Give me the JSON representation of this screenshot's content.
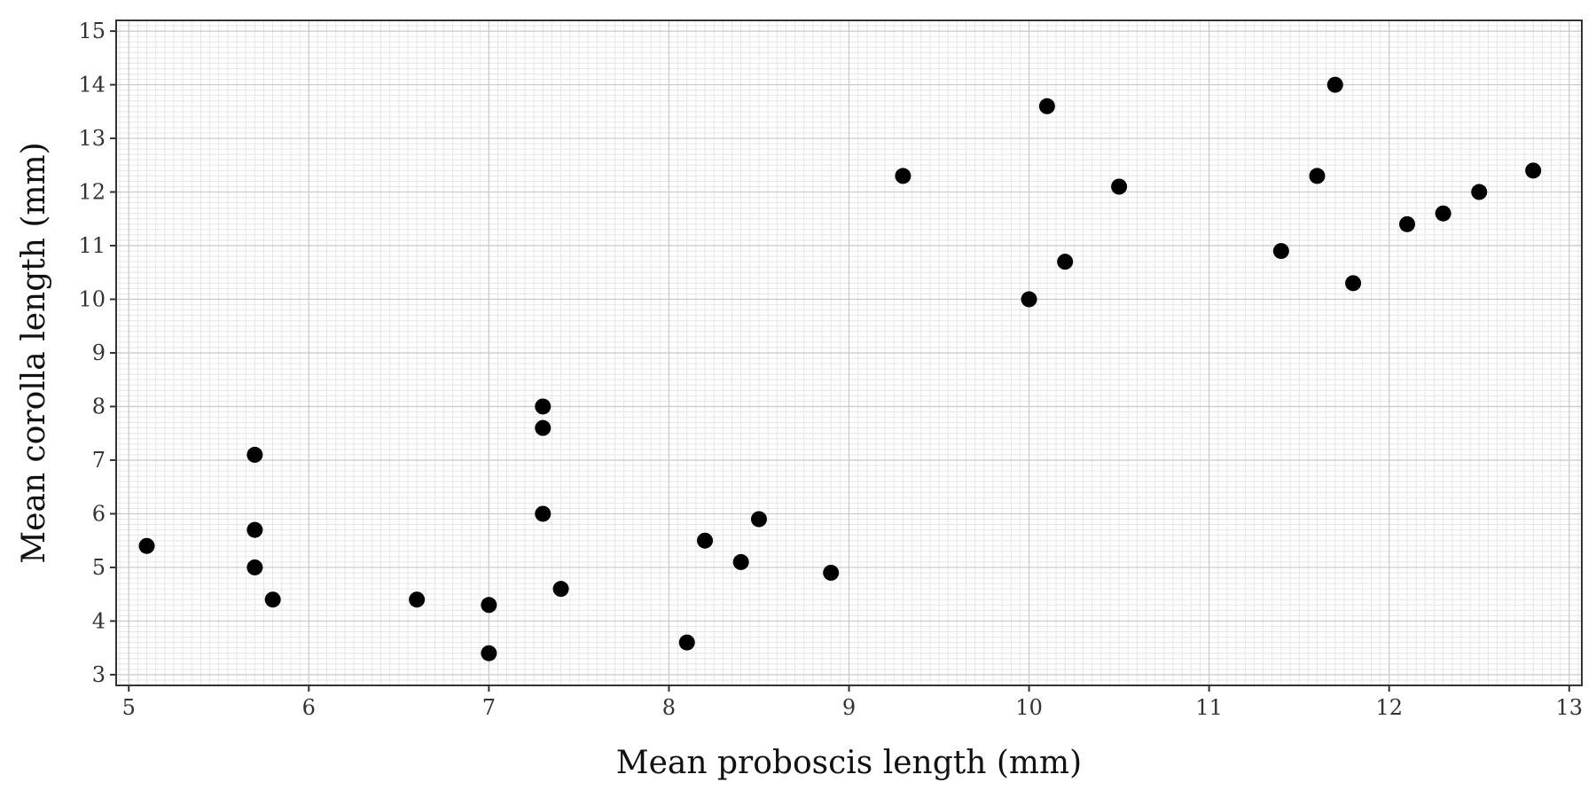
{
  "chart_data": {
    "type": "scatter",
    "title": "",
    "xlabel": "Mean proboscis length (mm)",
    "ylabel": "Mean corolla length (mm)",
    "xlim": [
      4.93,
      13.07
    ],
    "ylim": [
      2.8,
      15.2
    ],
    "xticks": [
      "5",
      "6",
      "7",
      "8",
      "9",
      "10",
      "11",
      "12",
      "13"
    ],
    "yticks": [
      "3",
      "4",
      "5",
      "6",
      "7",
      "8",
      "9",
      "10",
      "11",
      "12",
      "13",
      "14",
      "15"
    ],
    "grid": true,
    "legend": "none",
    "point_color": "#000000",
    "points": [
      {
        "x": 5.1,
        "y": 5.4
      },
      {
        "x": 5.7,
        "y": 7.1
      },
      {
        "x": 5.7,
        "y": 5.7
      },
      {
        "x": 5.7,
        "y": 5.0
      },
      {
        "x": 5.8,
        "y": 4.4
      },
      {
        "x": 6.6,
        "y": 4.4
      },
      {
        "x": 7.0,
        "y": 4.3
      },
      {
        "x": 7.0,
        "y": 3.4
      },
      {
        "x": 7.3,
        "y": 8.0
      },
      {
        "x": 7.3,
        "y": 7.6
      },
      {
        "x": 7.3,
        "y": 6.0
      },
      {
        "x": 7.4,
        "y": 4.6
      },
      {
        "x": 8.1,
        "y": 3.6
      },
      {
        "x": 8.2,
        "y": 5.5
      },
      {
        "x": 8.4,
        "y": 5.1
      },
      {
        "x": 8.5,
        "y": 5.9
      },
      {
        "x": 8.9,
        "y": 4.9
      },
      {
        "x": 9.3,
        "y": 12.3
      },
      {
        "x": 10.0,
        "y": 10.0
      },
      {
        "x": 10.1,
        "y": 13.6
      },
      {
        "x": 10.2,
        "y": 10.7
      },
      {
        "x": 10.5,
        "y": 12.1
      },
      {
        "x": 11.4,
        "y": 10.9
      },
      {
        "x": 11.6,
        "y": 12.3
      },
      {
        "x": 11.7,
        "y": 14.0
      },
      {
        "x": 11.8,
        "y": 10.3
      },
      {
        "x": 12.1,
        "y": 11.4
      },
      {
        "x": 12.3,
        "y": 11.6
      },
      {
        "x": 12.5,
        "y": 12.0
      },
      {
        "x": 12.8,
        "y": 12.4
      }
    ]
  }
}
